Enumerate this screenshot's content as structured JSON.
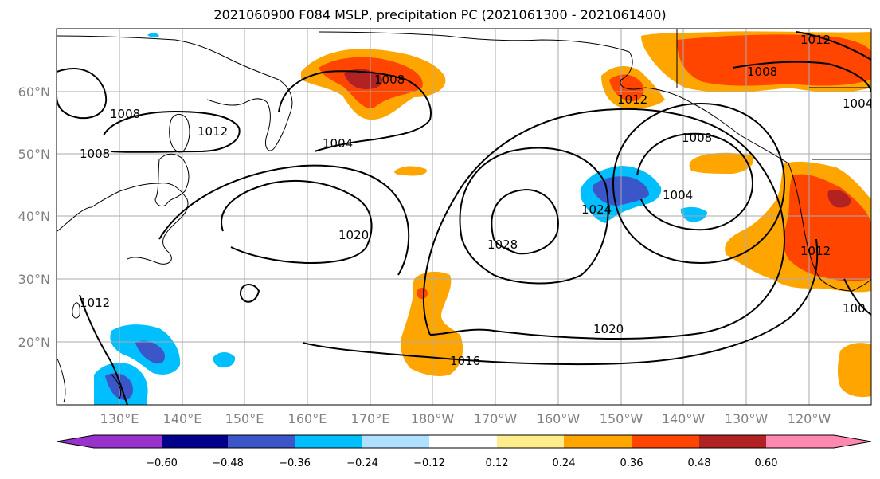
{
  "title": "2021060900 F084 MSLP, precipitation PC (2021061300 - 2021061400)",
  "map": {
    "lat_labels": [
      "60°N",
      "50°N",
      "40°N",
      "30°N",
      "20°N"
    ],
    "lon_labels": [
      "130°E",
      "140°E",
      "150°E",
      "160°E",
      "170°E",
      "180°W",
      "170°W",
      "160°W",
      "150°W",
      "140°W",
      "130°W",
      "120°W"
    ],
    "contour_labels": [
      "1008",
      "1012",
      "1008",
      "1004",
      "1008",
      "1012",
      "1012",
      "1008",
      "1004",
      "1008",
      "1004",
      "1020",
      "1028",
      "1024",
      "1020",
      "1016",
      "1012",
      "1012",
      "100"
    ]
  },
  "colorbar": {
    "labels": [
      "−0.60",
      "−0.48",
      "−0.36",
      "−0.24",
      "−0.12",
      "0.12",
      "0.24",
      "0.36",
      "0.48",
      "0.60"
    ],
    "colors": [
      "#9932cc",
      "#00008b",
      "#3a56c8",
      "#00bfff",
      "#b0e0ff",
      "#ffffff",
      "#ffec8b",
      "#ffa500",
      "#ff4500",
      "#b22222",
      "#ff88b0"
    ]
  }
}
